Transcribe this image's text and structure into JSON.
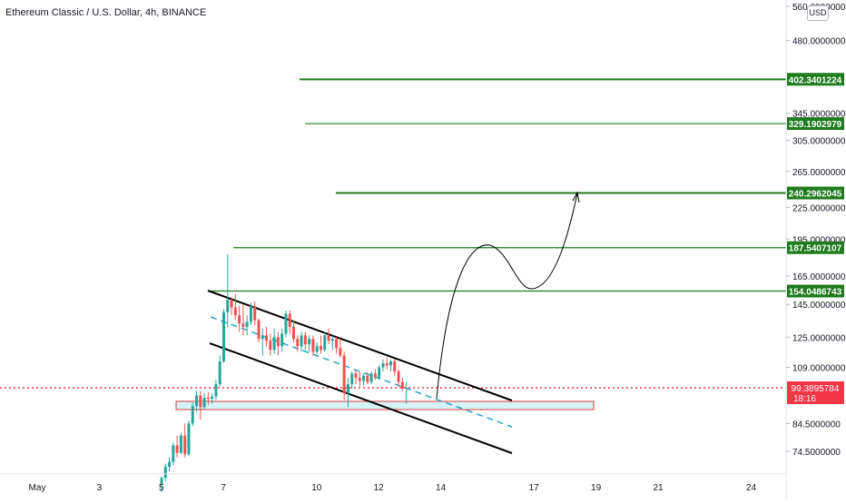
{
  "chart_data": {
    "type": "candlestick",
    "title": "Ethereum Classic / U.S. Dollar, 4h, BINANCE",
    "currency": "USD",
    "y_scale": "log",
    "ylim": [
      60,
      560
    ],
    "y_ticks": [
      {
        "value": 560,
        "label": "560.0000000"
      },
      {
        "value": 480,
        "label": "480.0000000"
      },
      {
        "value": 345,
        "label": "345.0000000"
      },
      {
        "value": 305,
        "label": "305.0000000"
      },
      {
        "value": 265,
        "label": "265.0000000"
      },
      {
        "value": 225,
        "label": "225.0000000"
      },
      {
        "value": 195,
        "label": "195.0000000"
      },
      {
        "value": 165,
        "label": "165.0000000"
      },
      {
        "value": 145,
        "label": "145.0000000"
      },
      {
        "value": 125,
        "label": "125.0000000"
      },
      {
        "value": 109,
        "label": "109.0000000"
      },
      {
        "value": 84.5,
        "label": "84.5000000"
      },
      {
        "value": 74.5,
        "label": "74.5000000"
      }
    ],
    "x_ticks": [
      {
        "day": 1,
        "label": "May"
      },
      {
        "day": 3,
        "label": "3"
      },
      {
        "day": 5,
        "label": "5"
      },
      {
        "day": 7,
        "label": "7"
      },
      {
        "day": 10,
        "label": "10"
      },
      {
        "day": 12,
        "label": "12"
      },
      {
        "day": 14,
        "label": "14"
      },
      {
        "day": 17,
        "label": "17"
      },
      {
        "day": 19,
        "label": "19"
      },
      {
        "day": 21,
        "label": "21"
      },
      {
        "day": 24,
        "label": "24"
      }
    ],
    "current_price": {
      "value": 99.3895784,
      "label": "99.3895784",
      "countdown": "18:16"
    },
    "levels": [
      {
        "value": 402.3401224,
        "label": "402.3401224"
      },
      {
        "value": 329.1902979,
        "label": "329.1902979"
      },
      {
        "value": 240.2962045,
        "label": "240.2962045"
      },
      {
        "value": 187.5407107,
        "label": "187.5407107"
      },
      {
        "value": 154.0486743,
        "label": "154.0486743"
      }
    ],
    "candles": [
      {
        "o": 64.0,
        "h": 66.5,
        "l": 62.0,
        "c": 66.0
      },
      {
        "o": 66.0,
        "h": 70.5,
        "l": 65.0,
        "c": 69.5
      },
      {
        "o": 69.5,
        "h": 72.5,
        "l": 68.0,
        "c": 71.0
      },
      {
        "o": 71.0,
        "h": 77.5,
        "l": 70.0,
        "c": 76.5
      },
      {
        "o": 76.5,
        "h": 80.0,
        "l": 72.5,
        "c": 74.0
      },
      {
        "o": 74.0,
        "h": 81.0,
        "l": 73.5,
        "c": 80.0
      },
      {
        "o": 80.0,
        "h": 84.5,
        "l": 72.5,
        "c": 73.5
      },
      {
        "o": 73.5,
        "h": 85.5,
        "l": 73.0,
        "c": 84.5
      },
      {
        "o": 84.5,
        "h": 93.0,
        "l": 83.5,
        "c": 91.5
      },
      {
        "o": 91.5,
        "h": 98.0,
        "l": 89.0,
        "c": 96.0
      },
      {
        "o": 96.0,
        "h": 98.0,
        "l": 86.0,
        "c": 91.0
      },
      {
        "o": 91.0,
        "h": 97.0,
        "l": 90.0,
        "c": 95.0
      },
      {
        "o": 95.0,
        "h": 97.5,
        "l": 92.0,
        "c": 94.5
      },
      {
        "o": 94.5,
        "h": 97.0,
        "l": 92.5,
        "c": 95.5
      },
      {
        "o": 95.5,
        "h": 103.0,
        "l": 94.0,
        "c": 101.0
      },
      {
        "o": 101.0,
        "h": 115.0,
        "l": 100.0,
        "c": 112.0
      },
      {
        "o": 112.0,
        "h": 142.0,
        "l": 111.0,
        "c": 140.0
      },
      {
        "o": 140.0,
        "h": 182.0,
        "l": 131.0,
        "c": 148.0
      },
      {
        "o": 148.0,
        "h": 150.0,
        "l": 138.0,
        "c": 143.0
      },
      {
        "o": 143.0,
        "h": 152.0,
        "l": 135.0,
        "c": 138.0
      },
      {
        "o": 138.0,
        "h": 144.0,
        "l": 128.0,
        "c": 133.0
      },
      {
        "o": 133.0,
        "h": 145.0,
        "l": 126.0,
        "c": 131.0
      },
      {
        "o": 131.0,
        "h": 138.0,
        "l": 126.0,
        "c": 134.0
      },
      {
        "o": 134.0,
        "h": 146.0,
        "l": 132.0,
        "c": 144.0
      },
      {
        "o": 144.0,
        "h": 147.0,
        "l": 132.0,
        "c": 135.0
      },
      {
        "o": 135.0,
        "h": 136.0,
        "l": 122.0,
        "c": 124.0
      },
      {
        "o": 124.0,
        "h": 130.0,
        "l": 115.0,
        "c": 126.0
      },
      {
        "o": 126.0,
        "h": 131.0,
        "l": 120.0,
        "c": 123.0
      },
      {
        "o": 123.0,
        "h": 127.0,
        "l": 115.0,
        "c": 118.0
      },
      {
        "o": 118.0,
        "h": 130.0,
        "l": 116.0,
        "c": 125.0
      },
      {
        "o": 125.0,
        "h": 128.0,
        "l": 115.0,
        "c": 120.0
      },
      {
        "o": 120.0,
        "h": 130.0,
        "l": 117.0,
        "c": 127.0
      },
      {
        "o": 127.0,
        "h": 141.0,
        "l": 125.0,
        "c": 139.0
      },
      {
        "o": 139.0,
        "h": 141.0,
        "l": 127.0,
        "c": 131.0
      },
      {
        "o": 131.0,
        "h": 135.0,
        "l": 122.0,
        "c": 124.0
      },
      {
        "o": 124.0,
        "h": 126.0,
        "l": 117.0,
        "c": 120.0
      },
      {
        "o": 120.0,
        "h": 128.0,
        "l": 117.0,
        "c": 126.0
      },
      {
        "o": 126.0,
        "h": 128.0,
        "l": 118.0,
        "c": 121.0
      },
      {
        "o": 121.0,
        "h": 126.0,
        "l": 117.0,
        "c": 124.0
      },
      {
        "o": 124.0,
        "h": 126.0,
        "l": 115.0,
        "c": 117.0
      },
      {
        "o": 117.0,
        "h": 122.0,
        "l": 116.0,
        "c": 120.0
      },
      {
        "o": 120.0,
        "h": 126.0,
        "l": 116.0,
        "c": 118.0
      },
      {
        "o": 118.0,
        "h": 128.0,
        "l": 117.0,
        "c": 126.0
      },
      {
        "o": 126.0,
        "h": 130.0,
        "l": 121.0,
        "c": 123.0
      },
      {
        "o": 123.0,
        "h": 126.0,
        "l": 118.0,
        "c": 124.0
      },
      {
        "o": 124.0,
        "h": 125.0,
        "l": 116.0,
        "c": 119.0
      },
      {
        "o": 119.0,
        "h": 124.0,
        "l": 114.0,
        "c": 115.0
      },
      {
        "o": 115.0,
        "h": 117.0,
        "l": 94.0,
        "c": 97.0
      },
      {
        "o": 97.0,
        "h": 104.0,
        "l": 91.0,
        "c": 101.0
      },
      {
        "o": 101.0,
        "h": 107.0,
        "l": 99.0,
        "c": 106.0
      },
      {
        "o": 106.0,
        "h": 108.0,
        "l": 101.0,
        "c": 104.0
      },
      {
        "o": 104.0,
        "h": 107.0,
        "l": 100.0,
        "c": 102.5
      },
      {
        "o": 102.5,
        "h": 106.0,
        "l": 100.5,
        "c": 105.0
      },
      {
        "o": 105.0,
        "h": 106.5,
        "l": 101.0,
        "c": 102.0
      },
      {
        "o": 102.0,
        "h": 107.0,
        "l": 101.0,
        "c": 106.0
      },
      {
        "o": 106.0,
        "h": 108.0,
        "l": 103.0,
        "c": 104.0
      },
      {
        "o": 104.0,
        "h": 110.0,
        "l": 103.0,
        "c": 109.0
      },
      {
        "o": 109.0,
        "h": 113.0,
        "l": 107.0,
        "c": 111.0
      },
      {
        "o": 111.0,
        "h": 114.0,
        "l": 108.0,
        "c": 110.0
      },
      {
        "o": 110.0,
        "h": 113.0,
        "l": 107.0,
        "c": 112.0
      },
      {
        "o": 112.0,
        "h": 113.0,
        "l": 105.0,
        "c": 107.0
      },
      {
        "o": 107.0,
        "h": 108.0,
        "l": 100.0,
        "c": 102.0
      },
      {
        "o": 102.0,
        "h": 104.0,
        "l": 98.0,
        "c": 99.0
      },
      {
        "o": 99.0,
        "h": 102.0,
        "l": 92.5,
        "c": 99.4
      }
    ],
    "up_color": "#26a69a",
    "down_color": "#ef5350",
    "level_color": "#1e7b1e",
    "current_price_color": "#f23645"
  }
}
